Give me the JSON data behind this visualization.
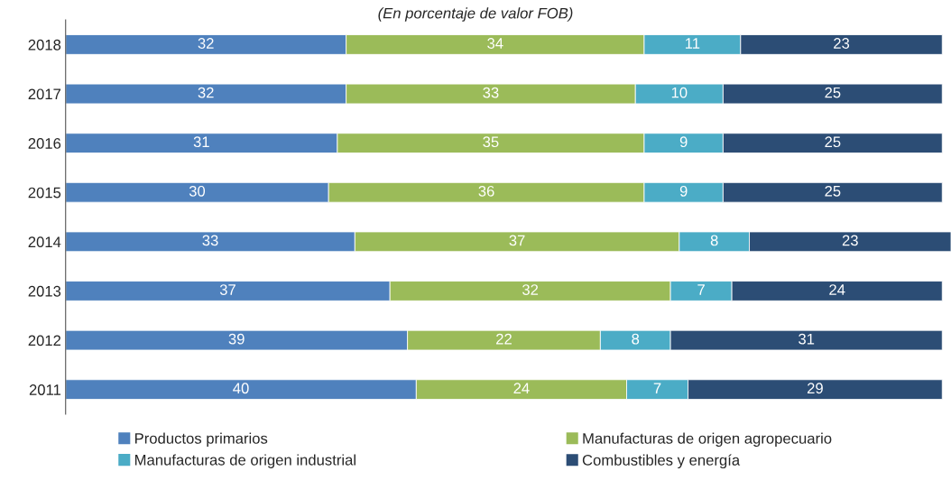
{
  "chart_data": {
    "type": "bar",
    "orientation": "horizontal",
    "stacked": true,
    "subtitle": "(En porcentaje de valor FOB)",
    "categories": [
      "2018",
      "2017",
      "2016",
      "2015",
      "2014",
      "2013",
      "2012",
      "2011"
    ],
    "series": [
      {
        "name": "Productos primarios",
        "color": "#4f81bd",
        "values": [
          32,
          32,
          31,
          30,
          33,
          37,
          39,
          40
        ]
      },
      {
        "name": "Manufacturas de origen agropecuario",
        "color": "#9bbb59",
        "values": [
          34,
          33,
          35,
          36,
          37,
          32,
          22,
          24
        ]
      },
      {
        "name": "Manufacturas de origen industrial",
        "color": "#4bacc6",
        "values": [
          11,
          10,
          9,
          9,
          8,
          7,
          8,
          7
        ]
      },
      {
        "name": "Combustibles y energía",
        "color": "#2c4d75",
        "values": [
          23,
          25,
          25,
          25,
          23,
          24,
          31,
          29
        ]
      }
    ],
    "data_labels": true,
    "legend": "bottom",
    "grid": false,
    "tick_labels": "y"
  }
}
